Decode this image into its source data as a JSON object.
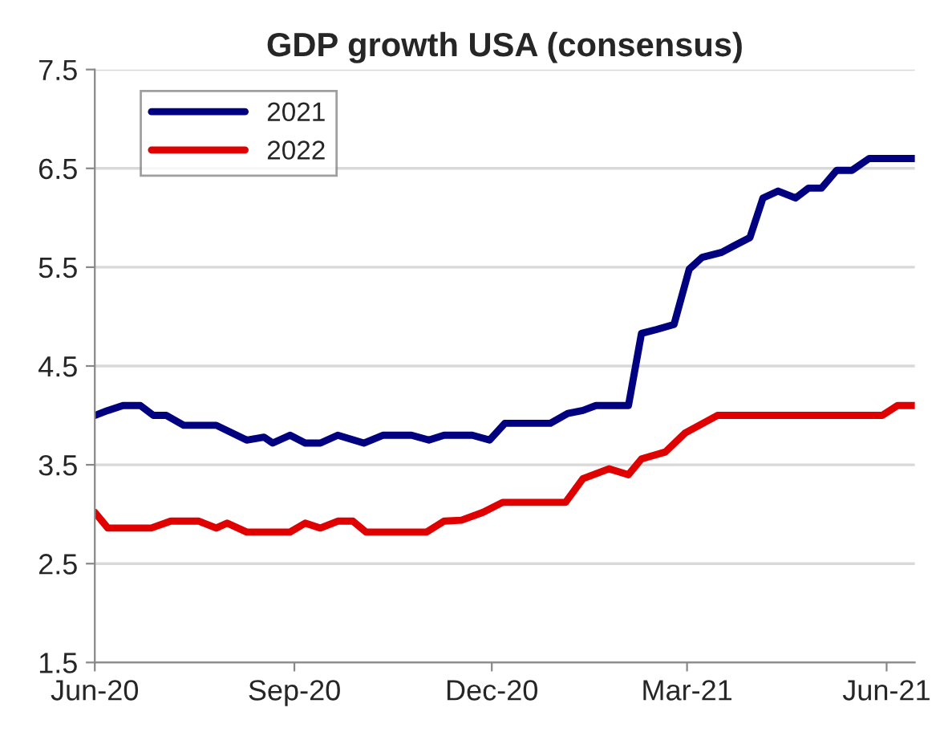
{
  "chart_data": {
    "type": "line",
    "title": "GDP growth USA (consensus)",
    "xlim": [
      "2020-06-01",
      "2021-06-14"
    ],
    "xticks": [
      {
        "value": "2020-06-01",
        "label": "Jun-20"
      },
      {
        "value": "2020-09-01",
        "label": "Sep-20"
      },
      {
        "value": "2020-12-01",
        "label": "Dec-20"
      },
      {
        "value": "2021-03-01",
        "label": "Mar-21"
      },
      {
        "value": "2021-06-01",
        "label": "Jun-21"
      }
    ],
    "ylim": [
      1.5,
      7.5
    ],
    "yticks": [
      1.5,
      2.5,
      3.5,
      4.5,
      5.5,
      6.5,
      7.5
    ],
    "grid": "y",
    "legend": "top left",
    "series": [
      {
        "name": "2021",
        "color": "#000080",
        "x": [
          "2020-06-01",
          "2020-06-07",
          "2020-06-14",
          "2020-06-22",
          "2020-06-28",
          "2020-07-04",
          "2020-07-12",
          "2020-07-27",
          "2020-08-10",
          "2020-08-18",
          "2020-08-22",
          "2020-08-30",
          "2020-09-06",
          "2020-09-13",
          "2020-09-21",
          "2020-10-03",
          "2020-10-12",
          "2020-10-25",
          "2020-11-02",
          "2020-11-09",
          "2020-11-22",
          "2020-11-30",
          "2020-12-07",
          "2020-12-28",
          "2021-01-05",
          "2021-01-12",
          "2021-01-18",
          "2021-02-02",
          "2021-02-08",
          "2021-02-15",
          "2021-02-23",
          "2021-03-02",
          "2021-03-08",
          "2021-03-17",
          "2021-03-23",
          "2021-03-30",
          "2021-04-05",
          "2021-04-12",
          "2021-04-20",
          "2021-04-26",
          "2021-05-02",
          "2021-05-09",
          "2021-05-16",
          "2021-05-24",
          "2021-06-14"
        ],
        "values": [
          4.0,
          4.05,
          4.1,
          4.1,
          4.0,
          4.0,
          3.9,
          3.9,
          3.75,
          3.78,
          3.72,
          3.8,
          3.72,
          3.72,
          3.8,
          3.72,
          3.8,
          3.8,
          3.75,
          3.8,
          3.8,
          3.75,
          3.92,
          3.92,
          4.02,
          4.05,
          4.1,
          4.1,
          4.83,
          4.87,
          4.92,
          5.48,
          5.6,
          5.65,
          5.72,
          5.8,
          6.2,
          6.27,
          6.2,
          6.3,
          6.3,
          6.48,
          6.48,
          6.6,
          6.6
        ]
      },
      {
        "name": "2022",
        "color": "#e00000",
        "x": [
          "2020-06-01",
          "2020-06-07",
          "2020-06-27",
          "2020-07-06",
          "2020-07-19",
          "2020-07-27",
          "2020-08-01",
          "2020-08-10",
          "2020-08-30",
          "2020-09-06",
          "2020-09-13",
          "2020-09-21",
          "2020-09-28",
          "2020-10-04",
          "2020-11-01",
          "2020-11-09",
          "2020-11-17",
          "2020-11-27",
          "2020-12-06",
          "2021-01-04",
          "2021-01-12",
          "2021-01-24",
          "2021-02-02",
          "2021-02-08",
          "2021-02-19",
          "2021-02-28",
          "2021-03-15",
          "2021-05-30",
          "2021-06-06",
          "2021-06-14"
        ],
        "values": [
          3.02,
          2.86,
          2.86,
          2.93,
          2.93,
          2.86,
          2.91,
          2.82,
          2.82,
          2.91,
          2.86,
          2.93,
          2.93,
          2.82,
          2.82,
          2.93,
          2.94,
          3.02,
          3.12,
          3.12,
          3.36,
          3.46,
          3.4,
          3.56,
          3.63,
          3.82,
          4.0,
          4.0,
          4.1,
          4.1
        ]
      }
    ]
  }
}
